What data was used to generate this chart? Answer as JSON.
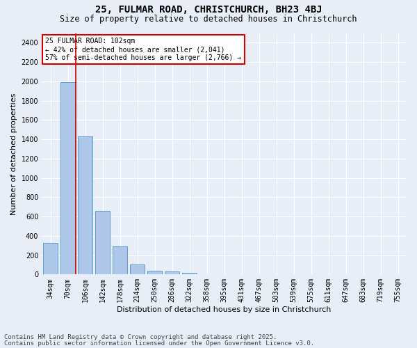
{
  "title": "25, FULMAR ROAD, CHRISTCHURCH, BH23 4BJ",
  "subtitle": "Size of property relative to detached houses in Christchurch",
  "xlabel": "Distribution of detached houses by size in Christchurch",
  "ylabel": "Number of detached properties",
  "categories": [
    "34sqm",
    "70sqm",
    "106sqm",
    "142sqm",
    "178sqm",
    "214sqm",
    "250sqm",
    "286sqm",
    "322sqm",
    "358sqm",
    "395sqm",
    "431sqm",
    "467sqm",
    "503sqm",
    "539sqm",
    "575sqm",
    "611sqm",
    "647sqm",
    "683sqm",
    "719sqm",
    "755sqm"
  ],
  "values": [
    325,
    1990,
    1430,
    660,
    290,
    105,
    42,
    30,
    18,
    0,
    0,
    0,
    0,
    0,
    0,
    0,
    0,
    0,
    0,
    0,
    0
  ],
  "bar_color": "#aec6e8",
  "bar_edgecolor": "#5a9fd4",
  "property_line_color": "#cc0000",
  "annotation_text": "25 FULMAR ROAD: 102sqm\n← 42% of detached houses are smaller (2,041)\n57% of semi-detached houses are larger (2,766) →",
  "annotation_box_color": "#cc0000",
  "ylim": [
    0,
    2500
  ],
  "yticks": [
    0,
    200,
    400,
    600,
    800,
    1000,
    1200,
    1400,
    1600,
    1800,
    2000,
    2200,
    2400
  ],
  "footer_line1": "Contains HM Land Registry data © Crown copyright and database right 2025.",
  "footer_line2": "Contains public sector information licensed under the Open Government Licence v3.0.",
  "background_color": "#e8eef8",
  "plot_bg_color": "#e8eef8",
  "grid_color": "#ffffff",
  "title_fontsize": 10,
  "subtitle_fontsize": 8.5,
  "axis_label_fontsize": 8,
  "tick_fontsize": 7,
  "footer_fontsize": 6.5
}
